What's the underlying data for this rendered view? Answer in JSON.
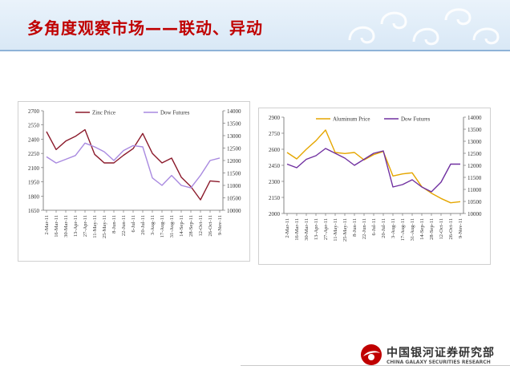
{
  "page": {
    "title": "多角度观察市场——联动、异动"
  },
  "brand": {
    "name_cn": "中国银河证券研究部",
    "name_en": "CHINA GALAXY SECURITIES RESEARCH",
    "color": "#c00000"
  },
  "chart_data": [
    {
      "type": "line",
      "legend_position": "top",
      "grid": false,
      "x": [
        "2-Mar-11",
        "16-Mar-11",
        "30-Mar-11",
        "13-Apr-11",
        "27-Apr-11",
        "11-May-11",
        "25-May-11",
        "8-Jun-11",
        "22-Jun-11",
        "6-Jul-11",
        "20-Jul-11",
        "3-Aug-11",
        "17-Aug-11",
        "31-Aug-11",
        "14-Sep-11",
        "28-Sep-11",
        "12-Oct-11",
        "26-Oct-11",
        "9-Nov-11"
      ],
      "ylim": [
        1650,
        2700
      ],
      "y_ticks": [
        1650,
        1800,
        1950,
        2100,
        2250,
        2400,
        2550,
        2700
      ],
      "y2lim": [
        10000,
        14000
      ],
      "y2_ticks": [
        10000,
        10500,
        11000,
        11500,
        12000,
        12500,
        13000,
        13500,
        14000
      ],
      "series": [
        {
          "name": "Zinc Price",
          "axis": "left",
          "color": "#8b1a2b",
          "values": [
            2480,
            2290,
            2380,
            2430,
            2500,
            2240,
            2150,
            2150,
            2230,
            2300,
            2460,
            2250,
            2150,
            2200,
            2000,
            1900,
            1760,
            1960,
            1950
          ]
        },
        {
          "name": "Dow Futures",
          "axis": "right",
          "color": "#a98ae0",
          "values": [
            12150,
            11900,
            12050,
            12200,
            12700,
            12550,
            12350,
            12000,
            12400,
            12600,
            12550,
            11300,
            11000,
            11400,
            11000,
            10900,
            11400,
            12000,
            12100
          ]
        }
      ]
    },
    {
      "type": "line",
      "legend_position": "top",
      "grid": false,
      "x": [
        "2-Mar-11",
        "16-Mar-11",
        "30-Mar-11",
        "13-Apr-11",
        "27-Apr-11",
        "11-May-11",
        "25-May-11",
        "8-Jun-11",
        "22-Jun-11",
        "6-Jul-11",
        "20-Jul-11",
        "3-Aug-11",
        "17-Aug-11",
        "31-Aug-11",
        "14-Sep-11",
        "28-Sep-11",
        "12-Oct-11",
        "26-Oct-11",
        "9-Nov-11"
      ],
      "ylim": [
        2000,
        2900
      ],
      "y_ticks": [
        2000,
        2150,
        2300,
        2450,
        2600,
        2750,
        2900
      ],
      "y2lim": [
        10000,
        14000
      ],
      "y2_ticks": [
        10000,
        10500,
        11000,
        11500,
        12000,
        12500,
        13000,
        13500,
        14000
      ],
      "series": [
        {
          "name": "Aluminum Price",
          "axis": "left",
          "color": "#e5a600",
          "values": [
            2570,
            2510,
            2600,
            2680,
            2780,
            2570,
            2560,
            2570,
            2500,
            2550,
            2580,
            2350,
            2370,
            2380,
            2250,
            2190,
            2140,
            2100,
            2110
          ]
        },
        {
          "name": "Dow Futures",
          "axis": "right",
          "color": "#7030a0",
          "values": [
            12050,
            11900,
            12250,
            12400,
            12700,
            12500,
            12300,
            12000,
            12250,
            12500,
            12600,
            11100,
            11200,
            11400,
            11100,
            10900,
            11300,
            12050,
            12050
          ]
        }
      ]
    }
  ]
}
